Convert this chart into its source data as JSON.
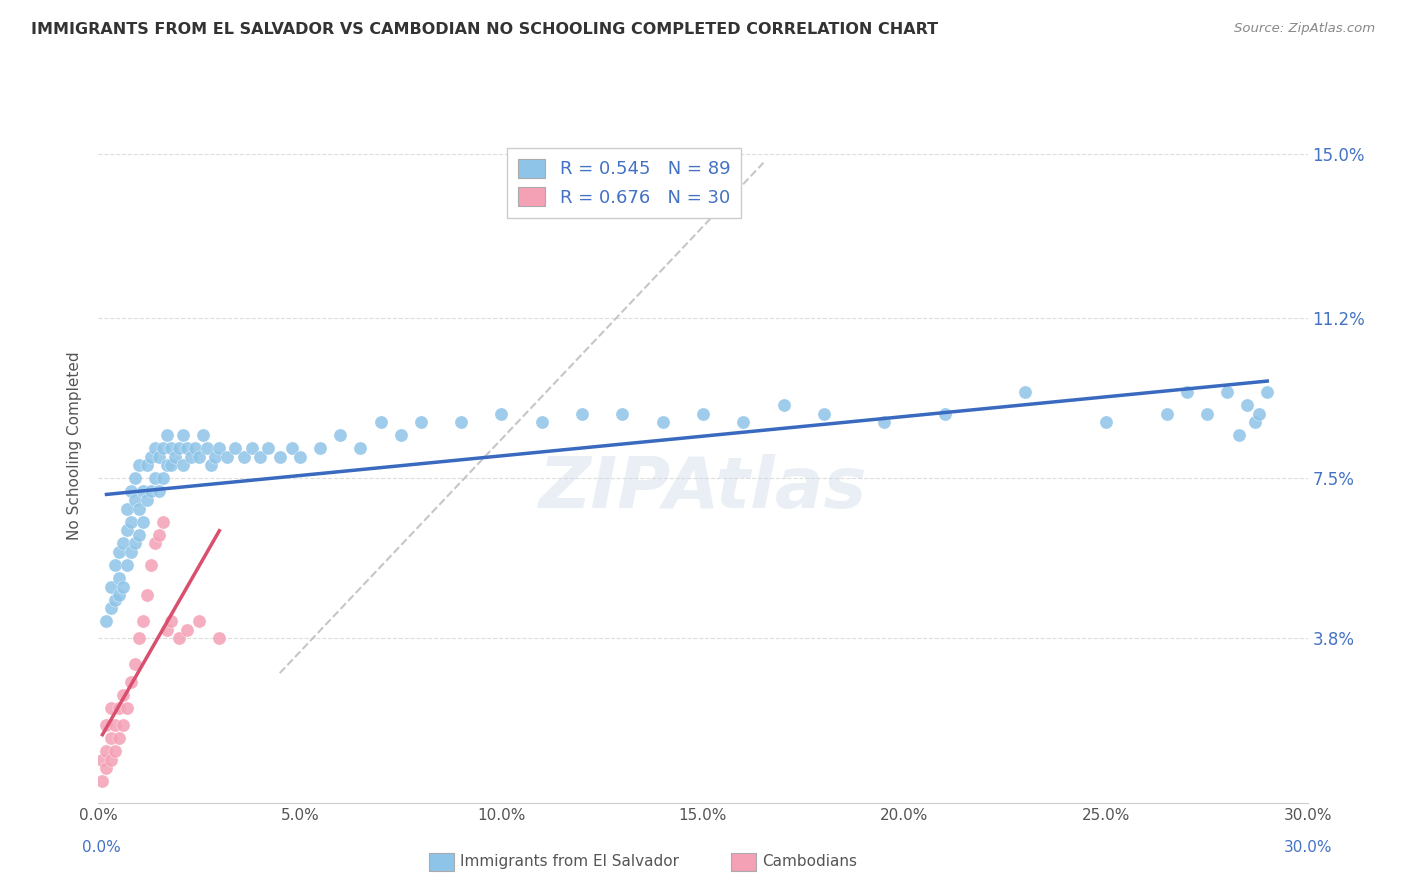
{
  "title": "IMMIGRANTS FROM EL SALVADOR VS CAMBODIAN NO SCHOOLING COMPLETED CORRELATION CHART",
  "source": "Source: ZipAtlas.com",
  "ylabel": "No Schooling Completed",
  "x_tick_labels": [
    "0.0%",
    "5.0%",
    "10.0%",
    "15.0%",
    "20.0%",
    "25.0%",
    "30.0%"
  ],
  "x_tick_values": [
    0.0,
    0.05,
    0.1,
    0.15,
    0.2,
    0.25,
    0.3
  ],
  "y_tick_labels": [
    "3.8%",
    "7.5%",
    "11.2%",
    "15.0%"
  ],
  "y_tick_values": [
    0.038,
    0.075,
    0.112,
    0.15
  ],
  "xlim": [
    0.0,
    0.3
  ],
  "ylim": [
    0.0,
    0.165
  ],
  "legend_label_1": "Immigrants from El Salvador",
  "legend_label_2": "Cambodians",
  "R1": 0.545,
  "N1": 89,
  "R2": 0.676,
  "N2": 30,
  "color_blue": "#8ec4e8",
  "color_pink": "#f4a0b5",
  "color_blue_line": "#3a6abf",
  "color_pink_line": "#d94f6e",
  "color_blue_text": "#4472c4",
  "watermark": "ZIPAtlas",
  "blue_x": [
    0.002,
    0.003,
    0.003,
    0.004,
    0.004,
    0.005,
    0.005,
    0.005,
    0.006,
    0.006,
    0.007,
    0.007,
    0.007,
    0.008,
    0.008,
    0.008,
    0.009,
    0.009,
    0.009,
    0.01,
    0.01,
    0.01,
    0.011,
    0.011,
    0.012,
    0.012,
    0.013,
    0.013,
    0.014,
    0.014,
    0.015,
    0.015,
    0.016,
    0.016,
    0.017,
    0.017,
    0.018,
    0.018,
    0.019,
    0.02,
    0.021,
    0.021,
    0.022,
    0.023,
    0.024,
    0.025,
    0.026,
    0.027,
    0.028,
    0.029,
    0.03,
    0.032,
    0.034,
    0.036,
    0.038,
    0.04,
    0.042,
    0.045,
    0.048,
    0.05,
    0.055,
    0.06,
    0.065,
    0.07,
    0.075,
    0.08,
    0.09,
    0.1,
    0.11,
    0.12,
    0.13,
    0.14,
    0.15,
    0.16,
    0.17,
    0.18,
    0.195,
    0.21,
    0.23,
    0.25,
    0.265,
    0.27,
    0.275,
    0.28,
    0.283,
    0.285,
    0.287,
    0.288,
    0.29
  ],
  "blue_y": [
    0.042,
    0.045,
    0.05,
    0.047,
    0.055,
    0.048,
    0.052,
    0.058,
    0.05,
    0.06,
    0.055,
    0.063,
    0.068,
    0.058,
    0.065,
    0.072,
    0.06,
    0.07,
    0.075,
    0.062,
    0.068,
    0.078,
    0.065,
    0.072,
    0.07,
    0.078,
    0.072,
    0.08,
    0.075,
    0.082,
    0.072,
    0.08,
    0.075,
    0.082,
    0.078,
    0.085,
    0.078,
    0.082,
    0.08,
    0.082,
    0.078,
    0.085,
    0.082,
    0.08,
    0.082,
    0.08,
    0.085,
    0.082,
    0.078,
    0.08,
    0.082,
    0.08,
    0.082,
    0.08,
    0.082,
    0.08,
    0.082,
    0.08,
    0.082,
    0.08,
    0.082,
    0.085,
    0.082,
    0.088,
    0.085,
    0.088,
    0.088,
    0.09,
    0.088,
    0.09,
    0.09,
    0.088,
    0.09,
    0.088,
    0.092,
    0.09,
    0.088,
    0.09,
    0.095,
    0.088,
    0.09,
    0.095,
    0.09,
    0.095,
    0.085,
    0.092,
    0.088,
    0.09,
    0.095
  ],
  "pink_x": [
    0.001,
    0.001,
    0.002,
    0.002,
    0.002,
    0.003,
    0.003,
    0.003,
    0.004,
    0.004,
    0.005,
    0.005,
    0.006,
    0.006,
    0.007,
    0.008,
    0.009,
    0.01,
    0.011,
    0.012,
    0.013,
    0.014,
    0.015,
    0.016,
    0.017,
    0.018,
    0.02,
    0.022,
    0.025,
    0.03
  ],
  "pink_y": [
    0.005,
    0.01,
    0.008,
    0.012,
    0.018,
    0.01,
    0.015,
    0.022,
    0.012,
    0.018,
    0.015,
    0.022,
    0.018,
    0.025,
    0.022,
    0.028,
    0.032,
    0.038,
    0.042,
    0.048,
    0.055,
    0.06,
    0.062,
    0.065,
    0.04,
    0.042,
    0.038,
    0.04,
    0.042,
    0.038
  ]
}
